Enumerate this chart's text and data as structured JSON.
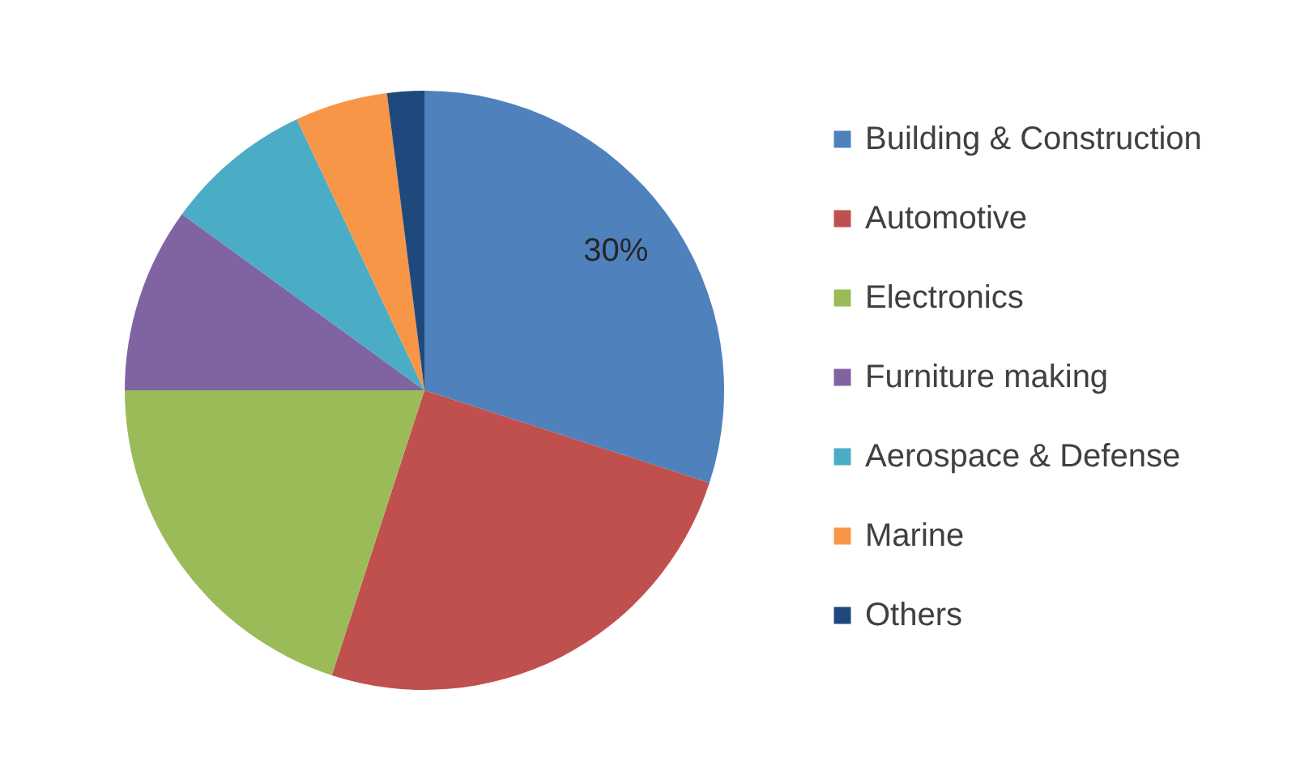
{
  "chart_data": {
    "type": "pie",
    "categories": [
      "Building & Construction",
      "Automotive",
      "Electronics",
      "Furniture making",
      "Aerospace & Defense",
      "Marine",
      "Others"
    ],
    "values": [
      30,
      25,
      20,
      10,
      8,
      5,
      2
    ],
    "colors": [
      "#4f81bd",
      "#c0504d",
      "#9bbb59",
      "#8064a2",
      "#4bacc6",
      "#f79646",
      "#1f497d"
    ],
    "value_labels": [
      "30%",
      null,
      null,
      null,
      null,
      null,
      null
    ],
    "legend": "right"
  }
}
